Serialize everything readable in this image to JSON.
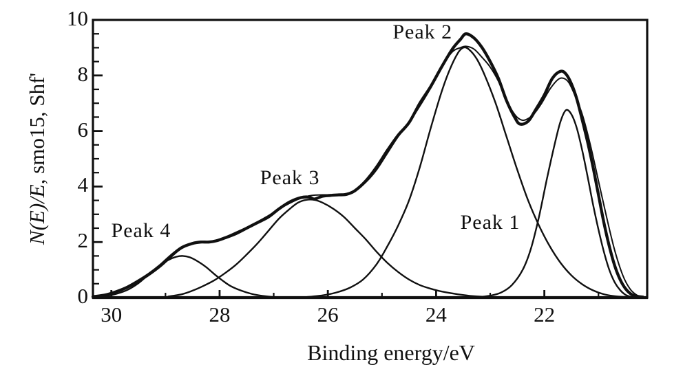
{
  "figure": {
    "background": "#ffffff",
    "ink_color": "#101010"
  },
  "axes": {
    "x_label": "Binding energy/eV",
    "y_label_italic": "N(E)/E",
    "y_label_rest": ", smo15, Shf'",
    "x_tick_labels": [
      30,
      28,
      26,
      24,
      22
    ],
    "x_minor_tick_step": 1,
    "y_tick_labels": [
      0,
      2,
      4,
      6,
      8,
      10
    ],
    "y_minor_tick_step": 0.5
  },
  "chart_data": {
    "type": "line",
    "title": "",
    "xlabel": "Binding energy/eV",
    "ylabel": "N(E)/E, smo15, Shf'",
    "x_axis_reversed": true,
    "xlim": [
      30.34,
      20.1
    ],
    "ylim": [
      0,
      10
    ],
    "grid": false,
    "legend": "none",
    "peaks_summary": [
      {
        "name": "Peak 1",
        "center_ev": 21.6,
        "height": 6.75
      },
      {
        "name": "Peak 2",
        "center_ev": 23.5,
        "height": 9.0
      },
      {
        "name": "Peak 3",
        "center_ev": 26.4,
        "height": 3.5
      },
      {
        "name": "Peak 4",
        "center_ev": 28.7,
        "height": 1.5
      }
    ],
    "series": [
      {
        "name": "peak-4-component",
        "role": "component",
        "points": [
          [
            30.3,
            0.02
          ],
          [
            30.1,
            0.06
          ],
          [
            29.9,
            0.14
          ],
          [
            29.7,
            0.28
          ],
          [
            29.5,
            0.52
          ],
          [
            29.3,
            0.85
          ],
          [
            29.1,
            1.15
          ],
          [
            28.95,
            1.35
          ],
          [
            28.8,
            1.47
          ],
          [
            28.68,
            1.5
          ],
          [
            28.55,
            1.45
          ],
          [
            28.4,
            1.3
          ],
          [
            28.25,
            1.1
          ],
          [
            28.1,
            0.85
          ],
          [
            27.95,
            0.62
          ],
          [
            27.8,
            0.42
          ],
          [
            27.6,
            0.25
          ],
          [
            27.4,
            0.13
          ],
          [
            27.2,
            0.06
          ],
          [
            27.0,
            0.02
          ],
          [
            26.75,
            0.0
          ]
        ]
      },
      {
        "name": "peak-3-component",
        "role": "component",
        "points": [
          [
            28.95,
            0.04
          ],
          [
            28.7,
            0.12
          ],
          [
            28.5,
            0.25
          ],
          [
            28.3,
            0.42
          ],
          [
            28.1,
            0.62
          ],
          [
            27.9,
            0.88
          ],
          [
            27.7,
            1.18
          ],
          [
            27.5,
            1.55
          ],
          [
            27.3,
            1.95
          ],
          [
            27.1,
            2.4
          ],
          [
            26.9,
            2.85
          ],
          [
            26.7,
            3.2
          ],
          [
            26.55,
            3.42
          ],
          [
            26.4,
            3.52
          ],
          [
            26.25,
            3.52
          ],
          [
            26.1,
            3.42
          ],
          [
            25.9,
            3.2
          ],
          [
            25.7,
            2.9
          ],
          [
            25.5,
            2.5
          ],
          [
            25.3,
            2.1
          ],
          [
            25.1,
            1.65
          ],
          [
            24.9,
            1.25
          ],
          [
            24.7,
            0.92
          ],
          [
            24.5,
            0.65
          ],
          [
            24.3,
            0.45
          ],
          [
            24.1,
            0.32
          ],
          [
            23.9,
            0.22
          ],
          [
            23.6,
            0.12
          ],
          [
            23.3,
            0.05
          ],
          [
            23.0,
            0.02
          ],
          [
            22.7,
            0.0
          ]
        ]
      },
      {
        "name": "peak-2-component",
        "role": "component",
        "points": [
          [
            26.4,
            0.02
          ],
          [
            26.1,
            0.08
          ],
          [
            25.85,
            0.18
          ],
          [
            25.6,
            0.35
          ],
          [
            25.35,
            0.65
          ],
          [
            25.1,
            1.2
          ],
          [
            24.9,
            1.85
          ],
          [
            24.7,
            2.6
          ],
          [
            24.5,
            3.5
          ],
          [
            24.3,
            4.7
          ],
          [
            24.1,
            6.1
          ],
          [
            23.9,
            7.4
          ],
          [
            23.75,
            8.2
          ],
          [
            23.6,
            8.8
          ],
          [
            23.5,
            9.0
          ],
          [
            23.4,
            8.95
          ],
          [
            23.25,
            8.6
          ],
          [
            23.1,
            8.0
          ],
          [
            22.9,
            7.0
          ],
          [
            22.7,
            5.8
          ],
          [
            22.5,
            4.6
          ],
          [
            22.3,
            3.5
          ],
          [
            22.1,
            2.6
          ],
          [
            21.9,
            1.85
          ],
          [
            21.7,
            1.25
          ],
          [
            21.5,
            0.8
          ],
          [
            21.3,
            0.48
          ],
          [
            21.1,
            0.26
          ],
          [
            20.9,
            0.12
          ],
          [
            20.7,
            0.05
          ],
          [
            20.5,
            0.02
          ]
        ]
      },
      {
        "name": "peak-1-component",
        "role": "component",
        "points": [
          [
            23.2,
            0.02
          ],
          [
            23.0,
            0.07
          ],
          [
            22.8,
            0.18
          ],
          [
            22.6,
            0.45
          ],
          [
            22.4,
            1.0
          ],
          [
            22.25,
            1.75
          ],
          [
            22.1,
            2.9
          ],
          [
            21.95,
            4.3
          ],
          [
            21.8,
            5.6
          ],
          [
            21.7,
            6.35
          ],
          [
            21.6,
            6.75
          ],
          [
            21.5,
            6.6
          ],
          [
            21.4,
            6.1
          ],
          [
            21.3,
            5.3
          ],
          [
            21.2,
            4.35
          ],
          [
            21.1,
            3.35
          ],
          [
            21.0,
            2.45
          ],
          [
            20.9,
            1.65
          ],
          [
            20.8,
            1.0
          ],
          [
            20.7,
            0.55
          ],
          [
            20.6,
            0.27
          ],
          [
            20.5,
            0.1
          ],
          [
            20.4,
            0.03
          ],
          [
            20.3,
            0.0
          ]
        ]
      },
      {
        "name": "fit-envelope",
        "role": "envelope",
        "points": [
          [
            30.34,
            0.02
          ],
          [
            30.0,
            0.14
          ],
          [
            29.7,
            0.35
          ],
          [
            29.4,
            0.68
          ],
          [
            29.1,
            1.1
          ],
          [
            28.9,
            1.45
          ],
          [
            28.7,
            1.78
          ],
          [
            28.5,
            1.95
          ],
          [
            28.3,
            2.0
          ],
          [
            28.1,
            2.05
          ],
          [
            27.9,
            2.18
          ],
          [
            27.7,
            2.35
          ],
          [
            27.4,
            2.62
          ],
          [
            27.1,
            2.95
          ],
          [
            26.8,
            3.3
          ],
          [
            26.5,
            3.58
          ],
          [
            26.3,
            3.68
          ],
          [
            26.1,
            3.7
          ],
          [
            25.9,
            3.7
          ],
          [
            25.7,
            3.73
          ],
          [
            25.5,
            3.85
          ],
          [
            25.3,
            4.15
          ],
          [
            25.1,
            4.6
          ],
          [
            24.9,
            5.2
          ],
          [
            24.7,
            5.8
          ],
          [
            24.5,
            6.3
          ],
          [
            24.3,
            6.9
          ],
          [
            24.1,
            7.55
          ],
          [
            23.9,
            8.3
          ],
          [
            23.7,
            8.85
          ],
          [
            23.55,
            9.0
          ],
          [
            23.45,
            9.05
          ],
          [
            23.3,
            8.95
          ],
          [
            23.15,
            8.65
          ],
          [
            23.0,
            8.3
          ],
          [
            22.85,
            7.8
          ],
          [
            22.7,
            7.1
          ],
          [
            22.55,
            6.6
          ],
          [
            22.45,
            6.42
          ],
          [
            22.35,
            6.4
          ],
          [
            22.2,
            6.6
          ],
          [
            22.05,
            7.0
          ],
          [
            21.9,
            7.5
          ],
          [
            21.75,
            7.85
          ],
          [
            21.65,
            7.9
          ],
          [
            21.55,
            7.75
          ],
          [
            21.45,
            7.35
          ],
          [
            21.3,
            6.6
          ],
          [
            21.15,
            5.5
          ],
          [
            21.0,
            4.2
          ],
          [
            20.85,
            2.9
          ],
          [
            20.7,
            1.7
          ],
          [
            20.55,
            0.8
          ],
          [
            20.42,
            0.32
          ],
          [
            20.3,
            0.1
          ],
          [
            20.18,
            0.02
          ]
        ]
      },
      {
        "name": "experimental",
        "role": "data",
        "points": [
          [
            30.34,
            0.03
          ],
          [
            30.1,
            0.1
          ],
          [
            29.9,
            0.22
          ],
          [
            29.7,
            0.38
          ],
          [
            29.5,
            0.6
          ],
          [
            29.3,
            0.85
          ],
          [
            29.1,
            1.15
          ],
          [
            28.9,
            1.5
          ],
          [
            28.7,
            1.8
          ],
          [
            28.5,
            1.95
          ],
          [
            28.35,
            2.0
          ],
          [
            28.2,
            2.0
          ],
          [
            28.05,
            2.05
          ],
          [
            27.9,
            2.15
          ],
          [
            27.7,
            2.3
          ],
          [
            27.5,
            2.5
          ],
          [
            27.3,
            2.7
          ],
          [
            27.1,
            2.9
          ],
          [
            26.9,
            3.2
          ],
          [
            26.7,
            3.45
          ],
          [
            26.5,
            3.6
          ],
          [
            26.35,
            3.62
          ],
          [
            26.25,
            3.55
          ],
          [
            26.1,
            3.65
          ],
          [
            25.95,
            3.68
          ],
          [
            25.8,
            3.7
          ],
          [
            25.65,
            3.72
          ],
          [
            25.5,
            3.85
          ],
          [
            25.3,
            4.2
          ],
          [
            25.1,
            4.7
          ],
          [
            24.9,
            5.3
          ],
          [
            24.7,
            5.85
          ],
          [
            24.5,
            6.3
          ],
          [
            24.3,
            7.0
          ],
          [
            24.1,
            7.6
          ],
          [
            23.9,
            8.3
          ],
          [
            23.7,
            8.95
          ],
          [
            23.55,
            9.3
          ],
          [
            23.45,
            9.5
          ],
          [
            23.3,
            9.35
          ],
          [
            23.15,
            9.0
          ],
          [
            23.0,
            8.5
          ],
          [
            22.85,
            7.9
          ],
          [
            22.7,
            7.1
          ],
          [
            22.55,
            6.5
          ],
          [
            22.45,
            6.25
          ],
          [
            22.3,
            6.35
          ],
          [
            22.15,
            6.8
          ],
          [
            22.0,
            7.3
          ],
          [
            21.85,
            7.9
          ],
          [
            21.7,
            8.15
          ],
          [
            21.6,
            8.05
          ],
          [
            21.5,
            7.7
          ],
          [
            21.4,
            7.15
          ],
          [
            21.3,
            6.4
          ],
          [
            21.2,
            5.6
          ],
          [
            21.1,
            4.7
          ],
          [
            21.0,
            3.7
          ],
          [
            20.9,
            2.7
          ],
          [
            20.8,
            1.85
          ],
          [
            20.7,
            1.15
          ],
          [
            20.6,
            0.65
          ],
          [
            20.5,
            0.32
          ],
          [
            20.4,
            0.13
          ],
          [
            20.3,
            0.05
          ],
          [
            20.18,
            0.02
          ]
        ]
      }
    ],
    "annotations": [
      {
        "label": "Peak 2",
        "ev": 24.25,
        "value": 9.55
      },
      {
        "label": "Peak 3",
        "ev": 26.7,
        "value": 4.3
      },
      {
        "label": "Peak 4",
        "ev": 29.45,
        "value": 2.4
      },
      {
        "label": "Peak 1",
        "ev": 23.0,
        "value": 2.7
      }
    ]
  }
}
